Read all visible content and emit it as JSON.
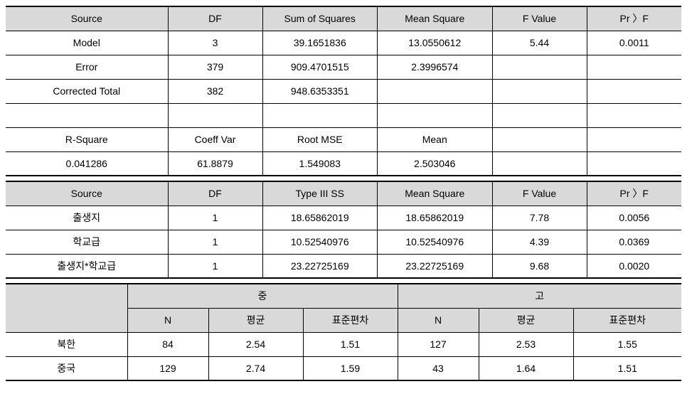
{
  "anova": {
    "headers": [
      "Source",
      "DF",
      "Sum of Squares",
      "Mean Square",
      "F Value",
      "Pr 〉F"
    ],
    "rows": [
      [
        "Model",
        "3",
        "39.1651836",
        "13.0550612",
        "5.44",
        "0.0011"
      ],
      [
        "Error",
        "379",
        "909.4701515",
        "2.3996574",
        "",
        ""
      ],
      [
        "Corrected  Total",
        "382",
        "948.6353351",
        "",
        "",
        ""
      ]
    ],
    "fit_headers": [
      "R-Square",
      "Coeff Var",
      "Root MSE",
      "Mean",
      "",
      ""
    ],
    "fit_values": [
      "0.041286",
      "61.8879",
      "1.549083",
      "2.503046",
      "",
      ""
    ]
  },
  "type3": {
    "headers": [
      "Source",
      "DF",
      "Type III SS",
      "Mean Square",
      "F Value",
      "Pr 〉F"
    ],
    "rows": [
      [
        "출생지",
        "1",
        "18.65862019",
        "18.65862019",
        "7.78",
        "0.0056"
      ],
      [
        "학교급",
        "1",
        "10.52540976",
        "10.52540976",
        "4.39",
        "0.0369"
      ],
      [
        "출생지*학교급",
        "1",
        "23.22725169",
        "23.22725169",
        "9.68",
        "0.0020"
      ]
    ]
  },
  "summary": {
    "group1": "중",
    "group2": "고",
    "sub_headers": [
      "N",
      "평균",
      "표준편차"
    ],
    "rows": [
      {
        "label": "북한",
        "g1": [
          "84",
          "2.54",
          "1.51"
        ],
        "g2": [
          "127",
          "2.53",
          "1.55"
        ]
      },
      {
        "label": "중국",
        "g1": [
          "129",
          "2.74",
          "1.59"
        ],
        "g2": [
          "43",
          "1.64",
          "1.51"
        ]
      }
    ]
  }
}
